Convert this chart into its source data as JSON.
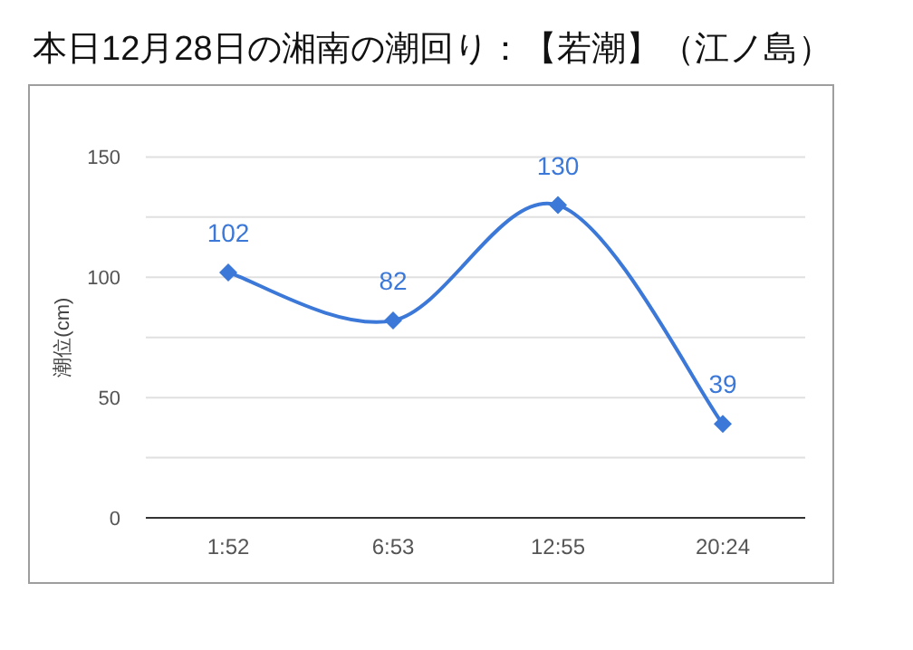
{
  "chart_data": {
    "type": "line",
    "title": "本日12月28日の湘南の潮回り：【若潮】（江ノ島）",
    "ylabel": "潮位(cm)",
    "categories": [
      "1:52",
      "6:53",
      "12:55",
      "20:24"
    ],
    "series": [
      {
        "color": "#3b78d8",
        "values": [
          102,
          82,
          130,
          39
        ]
      }
    ],
    "ylim": [
      0,
      150
    ],
    "yticks": [
      0,
      {
        "value": 25,
        "label": null
      },
      50,
      {
        "value": 75,
        "label": null
      },
      100,
      {
        "value": 125,
        "label": null
      },
      150
    ],
    "grid": "y",
    "marker": "diamond",
    "line_style": "solid",
    "data_labels": true
  }
}
